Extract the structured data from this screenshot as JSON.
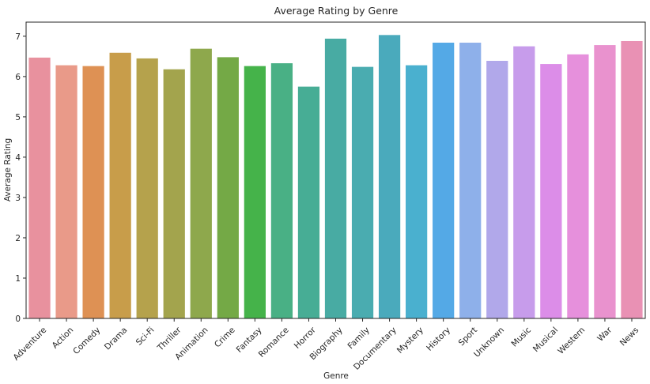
{
  "chart_data": {
    "type": "bar",
    "title": "Average Rating by Genre",
    "xlabel": "Genre",
    "ylabel": "Average Rating",
    "ylim": [
      0,
      7.35
    ],
    "yticks": [
      0,
      1,
      2,
      3,
      4,
      5,
      6,
      7
    ],
    "grid": false,
    "legend": "none",
    "categories": [
      "Adventure",
      "Action",
      "Comedy",
      "Drama",
      "Sci-Fi",
      "Thriller",
      "Animation",
      "Crime",
      "Fantasy",
      "Romance",
      "Horror",
      "Biography",
      "Family",
      "Documentary",
      "Mystery",
      "History",
      "Sport",
      "Unknown",
      "Music",
      "Musical",
      "Western",
      "War",
      "News"
    ],
    "values": [
      6.47,
      6.28,
      6.26,
      6.59,
      6.45,
      6.18,
      6.69,
      6.48,
      6.26,
      6.33,
      5.75,
      6.94,
      6.24,
      7.03,
      6.28,
      6.84,
      6.84,
      6.39,
      6.75,
      6.31,
      6.55,
      6.78,
      6.88
    ],
    "colors": [
      "#e8919e",
      "#e99a89",
      "#de9154",
      "#c89d4a",
      "#b5a24c",
      "#a3a44d",
      "#8ea84c",
      "#74a946",
      "#45b34a",
      "#49b085",
      "#47ad95",
      "#48aba3",
      "#4aacb0",
      "#4aaabc",
      "#4ab0cf",
      "#54a9e6",
      "#8eb0ea",
      "#b1a8ea",
      "#c79ceb",
      "#dc8de8",
      "#e690dc",
      "#e992ce",
      "#e991b4"
    ]
  }
}
